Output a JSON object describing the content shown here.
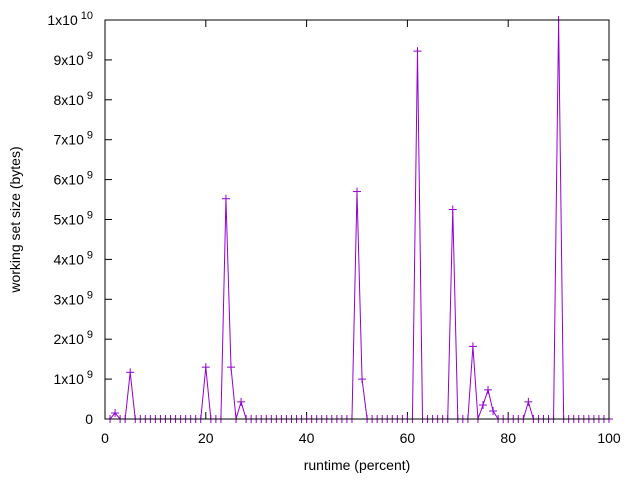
{
  "chart_data": {
    "type": "line",
    "title": "",
    "xlabel": "runtime (percent)",
    "ylabel": "working set size (bytes)",
    "xlim": [
      0,
      100
    ],
    "ylim": [
      0,
      10000000000
    ],
    "x_ticks": [
      0,
      20,
      40,
      60,
      80,
      100
    ],
    "x_tick_labels": [
      "0",
      "20",
      "40",
      "60",
      "80",
      "100"
    ],
    "y_ticks": [
      {
        "value": 0,
        "mantissa": "0",
        "exponent": ""
      },
      {
        "value": 1000000000,
        "mantissa": "1x10",
        "exponent": "9"
      },
      {
        "value": 2000000000,
        "mantissa": "2x10",
        "exponent": "9"
      },
      {
        "value": 3000000000,
        "mantissa": "3x10",
        "exponent": "9"
      },
      {
        "value": 4000000000,
        "mantissa": "4x10",
        "exponent": "9"
      },
      {
        "value": 5000000000,
        "mantissa": "5x10",
        "exponent": "9"
      },
      {
        "value": 6000000000,
        "mantissa": "6x10",
        "exponent": "9"
      },
      {
        "value": 7000000000,
        "mantissa": "7x10",
        "exponent": "9"
      },
      {
        "value": 8000000000,
        "mantissa": "8x10",
        "exponent": "9"
      },
      {
        "value": 9000000000,
        "mantissa": "9x10",
        "exponent": "9"
      },
      {
        "value": 10000000000,
        "mantissa": "1x10",
        "exponent": "10"
      }
    ],
    "grid": false,
    "legend": "none",
    "marker": "plus",
    "series_color": "#9400d3",
    "series": [
      {
        "x": [
          1,
          2,
          3,
          4,
          5,
          6,
          7,
          8,
          9,
          10,
          11,
          12,
          13,
          14,
          15,
          16,
          17,
          18,
          19,
          20,
          21,
          22,
          23,
          24,
          25,
          26,
          27,
          28,
          29,
          30,
          31,
          32,
          33,
          34,
          35,
          36,
          37,
          38,
          39,
          40,
          41,
          42,
          43,
          44,
          45,
          46,
          47,
          48,
          49,
          50,
          51,
          52,
          53,
          54,
          55,
          56,
          57,
          58,
          59,
          60,
          61,
          62,
          63,
          64,
          65,
          66,
          67,
          68,
          69,
          70,
          71,
          72,
          73,
          74,
          75,
          76,
          77,
          78,
          79,
          80,
          81,
          82,
          83,
          84,
          85,
          86,
          87,
          88,
          89,
          90,
          91,
          92,
          93,
          94,
          95,
          96,
          97,
          98,
          99,
          100
        ],
        "y": [
          0,
          150000000,
          0,
          0,
          1170000000,
          0,
          0,
          0,
          0,
          0,
          0,
          0,
          0,
          0,
          0,
          0,
          0,
          0,
          0,
          1300000000,
          0,
          0,
          0,
          5520000000,
          1300000000,
          0,
          430000000,
          0,
          0,
          0,
          0,
          0,
          0,
          0,
          0,
          0,
          0,
          0,
          0,
          0,
          0,
          0,
          0,
          0,
          0,
          0,
          0,
          0,
          0,
          5700000000,
          1000000000,
          0,
          0,
          0,
          0,
          0,
          0,
          0,
          0,
          0,
          0,
          9220000000,
          0,
          0,
          0,
          0,
          0,
          0,
          5250000000,
          0,
          0,
          0,
          1820000000,
          0,
          350000000,
          730000000,
          200000000,
          0,
          0,
          0,
          0,
          0,
          0,
          430000000,
          0,
          0,
          0,
          0,
          0,
          10000000000,
          0,
          0,
          0,
          0,
          0,
          0,
          0,
          0,
          0,
          0
        ]
      }
    ]
  }
}
